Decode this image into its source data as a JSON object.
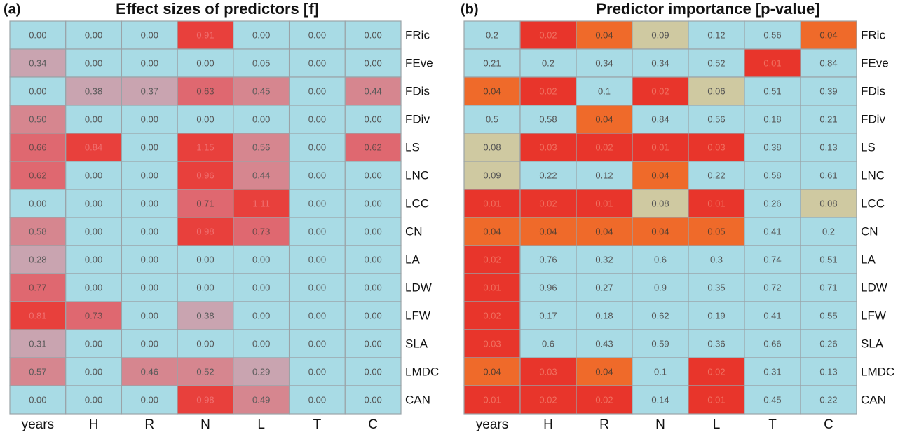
{
  "chart_data": [
    {
      "type": "heatmap",
      "panel": "(a)",
      "title": "Effect sizes of predictors [f]",
      "columns": [
        "years",
        "H",
        "R",
        "N",
        "L",
        "T",
        "C"
      ],
      "rows": [
        "FRic",
        "FEve",
        "FDis",
        "FDiv",
        "LS",
        "LNC",
        "LCC",
        "CN",
        "LA",
        "LDW",
        "LFW",
        "SLA",
        "LMDC",
        "CAN"
      ],
      "values": [
        [
          0,
          0,
          0,
          0.91,
          0,
          0,
          0
        ],
        [
          0.34,
          0,
          0,
          0,
          0.05,
          0,
          0
        ],
        [
          0,
          0.38,
          0.37,
          0.63,
          0.45,
          0,
          0.44
        ],
        [
          0.5,
          0,
          0,
          0,
          0,
          0,
          0
        ],
        [
          0.66,
          0.84,
          0,
          1.15,
          0.56,
          0,
          0.62
        ],
        [
          0.62,
          0,
          0,
          0.96,
          0.44,
          0,
          0
        ],
        [
          0,
          0,
          0,
          0.71,
          1.11,
          0,
          0
        ],
        [
          0.58,
          0,
          0,
          0.98,
          0.73,
          0,
          0
        ],
        [
          0.28,
          0,
          0,
          0,
          0,
          0,
          0
        ],
        [
          0.77,
          0,
          0,
          0,
          0,
          0,
          0
        ],
        [
          0.81,
          0.73,
          0,
          0.38,
          0,
          0,
          0
        ],
        [
          0.31,
          0,
          0,
          0,
          0,
          0,
          0
        ],
        [
          0.57,
          0,
          0.46,
          0.52,
          0.29,
          0,
          0
        ],
        [
          0,
          0,
          0,
          0.98,
          0.49,
          0,
          0
        ]
      ],
      "value_labels": [
        [
          "0.00",
          "0.00",
          "0.00",
          "0.91",
          "0.00",
          "0.00",
          "0.00"
        ],
        [
          "0.34",
          "0.00",
          "0.00",
          "0.00",
          "0.05",
          "0.00",
          "0.00"
        ],
        [
          "0.00",
          "0.38",
          "0.37",
          "0.63",
          "0.45",
          "0.00",
          "0.44"
        ],
        [
          "0.50",
          "0.00",
          "0.00",
          "0.00",
          "0.00",
          "0.00",
          "0.00"
        ],
        [
          "0.66",
          "0.84",
          "0.00",
          "1.15",
          "0.56",
          "0.00",
          "0.62"
        ],
        [
          "0.62",
          "0.00",
          "0.00",
          "0.96",
          "0.44",
          "0.00",
          "0.00"
        ],
        [
          "0.00",
          "0.00",
          "0.00",
          "0.71",
          "1.11",
          "0.00",
          "0.00"
        ],
        [
          "0.58",
          "0.00",
          "0.00",
          "0.98",
          "0.73",
          "0.00",
          "0.00"
        ],
        [
          "0.28",
          "0.00",
          "0.00",
          "0.00",
          "0.00",
          "0.00",
          "0.00"
        ],
        [
          "0.77",
          "0.00",
          "0.00",
          "0.00",
          "0.00",
          "0.00",
          "0.00"
        ],
        [
          "0.81",
          "0.73",
          "0.00",
          "0.38",
          "0.00",
          "0.00",
          "0.00"
        ],
        [
          "0.31",
          "0.00",
          "0.00",
          "0.00",
          "0.00",
          "0.00",
          "0.00"
        ],
        [
          "0.57",
          "0.00",
          "0.46",
          "0.52",
          "0.29",
          "0.00",
          "0.00"
        ],
        [
          "0.00",
          "0.00",
          "0.00",
          "0.98",
          "0.49",
          "0.00",
          "0.00"
        ]
      ],
      "color_scale": [
        {
          "below": 0.2,
          "color": "#a8dbe5",
          "text_color": "#555555"
        },
        {
          "below": 0.4,
          "color": "#c9a4b0",
          "text_color": "#5a5a5a"
        },
        {
          "below": 0.6,
          "color": "#d6868f",
          "text_color": "#5a5a5a"
        },
        {
          "below": 0.8,
          "color": "#df6870",
          "text_color": "#6a4a4a"
        },
        {
          "color": "#e8403c",
          "text_color": "#f07070"
        }
      ]
    },
    {
      "type": "heatmap",
      "panel": "(b)",
      "title": "Predictor importance [p-value]",
      "columns": [
        "years",
        "H",
        "R",
        "N",
        "L",
        "T",
        "C"
      ],
      "rows": [
        "FRic",
        "FEve",
        "FDis",
        "FDiv",
        "LS",
        "LNC",
        "LCC",
        "CN",
        "LA",
        "LDW",
        "LFW",
        "SLA",
        "LMDC",
        "CAN"
      ],
      "values": [
        [
          0.2,
          0.02,
          0.04,
          0.09,
          0.12,
          0.56,
          0.04
        ],
        [
          0.21,
          0.2,
          0.34,
          0.34,
          0.52,
          0.01,
          0.84
        ],
        [
          0.04,
          0.02,
          0.1,
          0.02,
          0.06,
          0.51,
          0.39
        ],
        [
          0.5,
          0.58,
          0.04,
          0.84,
          0.56,
          0.18,
          0.21
        ],
        [
          0.08,
          0.03,
          0.02,
          0.01,
          0.03,
          0.38,
          0.13
        ],
        [
          0.09,
          0.22,
          0.12,
          0.04,
          0.22,
          0.58,
          0.61
        ],
        [
          0.01,
          0.02,
          0.01,
          0.08,
          0.01,
          0.26,
          0.08
        ],
        [
          0.04,
          0.04,
          0.04,
          0.04,
          0.05,
          0.41,
          0.2
        ],
        [
          0.02,
          0.76,
          0.32,
          0.6,
          0.3,
          0.74,
          0.51
        ],
        [
          0.01,
          0.96,
          0.27,
          0.9,
          0.35,
          0.72,
          0.71
        ],
        [
          0.02,
          0.17,
          0.18,
          0.62,
          0.19,
          0.41,
          0.55
        ],
        [
          0.03,
          0.6,
          0.43,
          0.59,
          0.36,
          0.66,
          0.26
        ],
        [
          0.04,
          0.03,
          0.04,
          0.1,
          0.02,
          0.31,
          0.13
        ],
        [
          0.01,
          0.02,
          0.02,
          0.14,
          0.01,
          0.45,
          0.22
        ]
      ],
      "color_scale": [
        {
          "below": 0.035,
          "color": "#e8352b",
          "text_color": "#f07060"
        },
        {
          "below": 0.055,
          "color": "#ef6a2a",
          "text_color": "#5a4030"
        },
        {
          "below": 0.1,
          "color": "#cfc9a1",
          "text_color": "#555555"
        },
        {
          "color": "#a8dbe5",
          "text_color": "#555555"
        }
      ]
    }
  ]
}
